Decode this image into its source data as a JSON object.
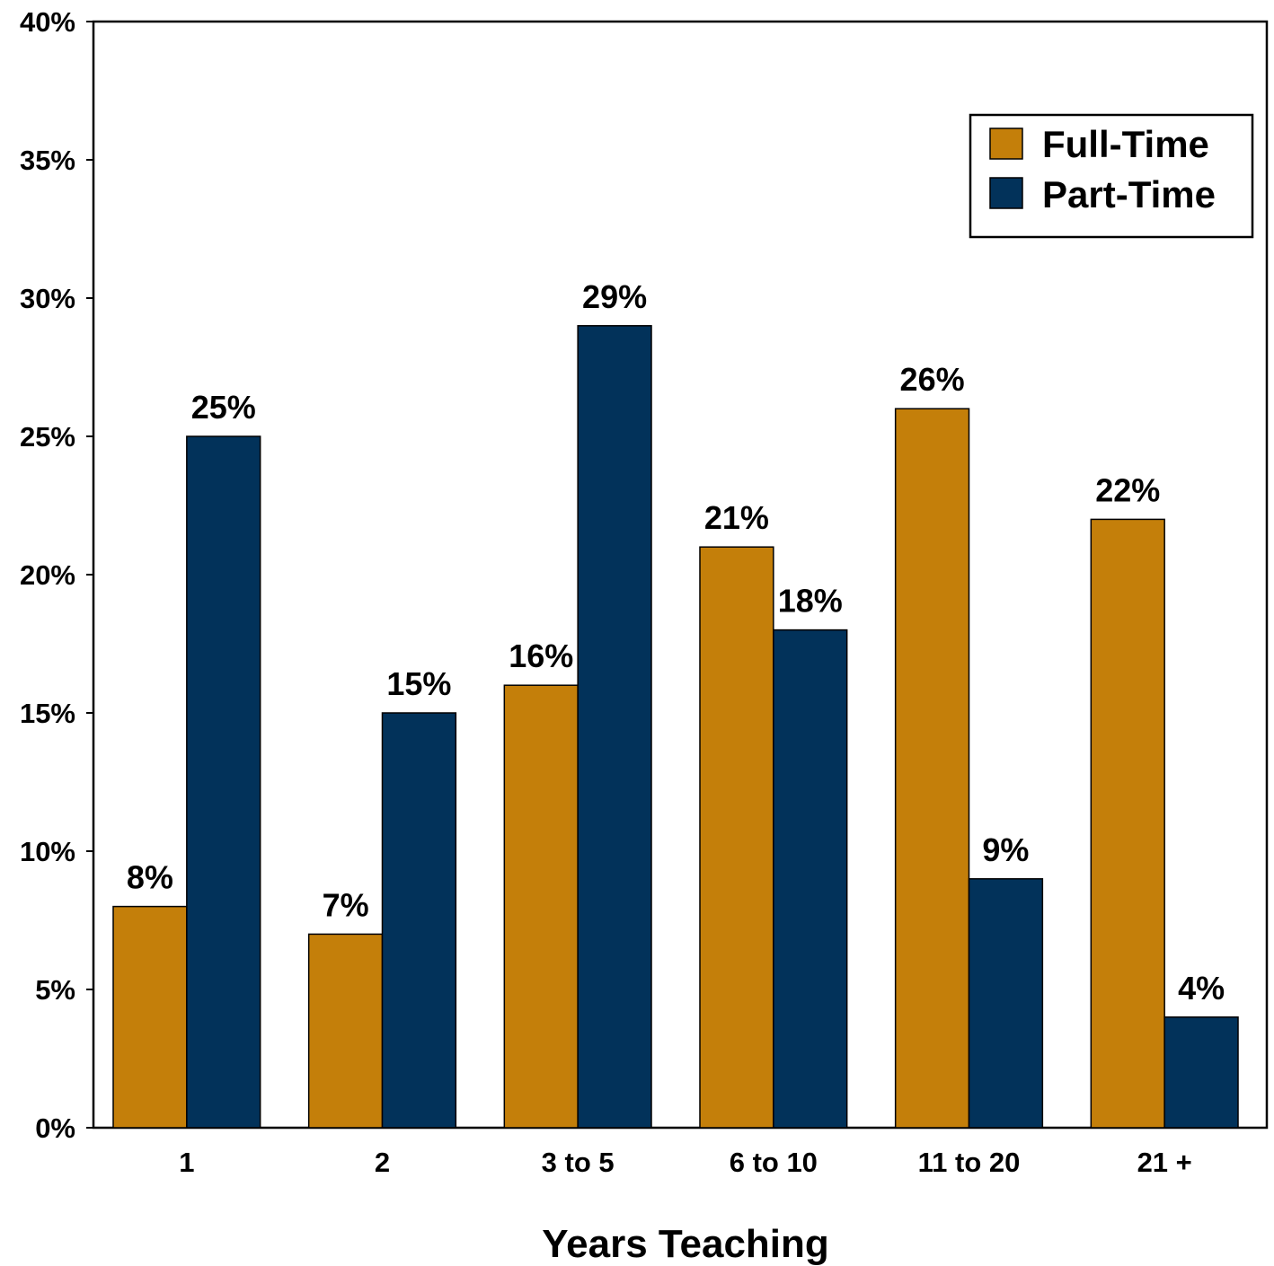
{
  "chart_data": {
    "type": "bar",
    "title": "",
    "xlabel": "Years Teaching",
    "ylabel": "",
    "categories": [
      "1",
      "2",
      "3 to 5",
      "6 to 10",
      "11 to 20",
      "21 +"
    ],
    "series": [
      {
        "name": "Full-Time",
        "values": [
          8,
          7,
          16,
          21,
          26,
          22
        ],
        "color": "#C47F0A"
      },
      {
        "name": "Part-Time",
        "values": [
          25,
          15,
          29,
          18,
          9,
          4
        ],
        "color": "#02325A"
      }
    ],
    "value_suffix": "%",
    "ylim": [
      0,
      40
    ],
    "yticks": [
      "0%",
      "5%",
      "10%",
      "15%",
      "20%",
      "25%",
      "30%",
      "35%",
      "40%"
    ],
    "grid": false,
    "legend_position": "top-right"
  }
}
